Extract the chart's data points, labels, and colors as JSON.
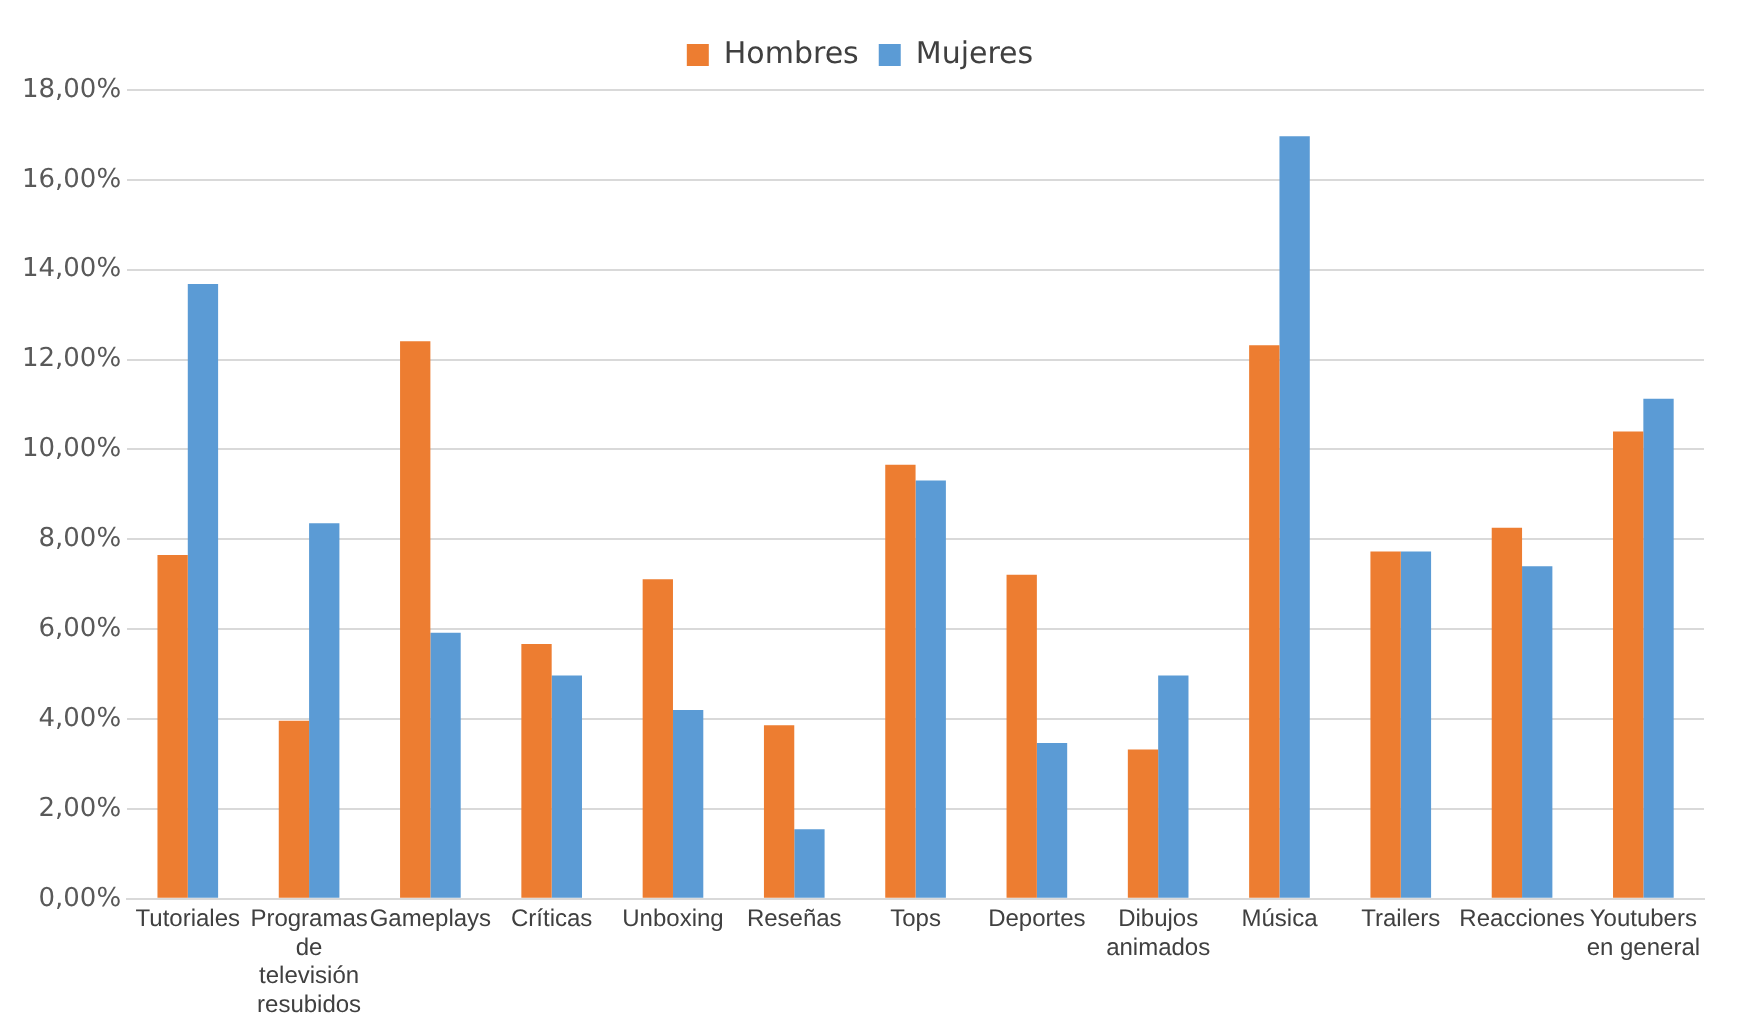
{
  "chart_data": {
    "type": "bar",
    "categories": [
      "Tutoriales",
      "Programas de televisión resubidos",
      "Gameplays",
      "Críticas",
      "Unboxing",
      "Reseñas",
      "Tops",
      "Deportes",
      "Dibujos animados",
      "Música",
      "Trailers",
      "Reacciones",
      "Youtubers en general"
    ],
    "series": [
      {
        "name": "Hombres",
        "color": "#ed7d31",
        "values": [
          7.65,
          3.96,
          12.41,
          5.67,
          7.11,
          3.86,
          9.66,
          7.21,
          3.32,
          12.32,
          7.73,
          8.26,
          10.4
        ]
      },
      {
        "name": "Mujeres",
        "color": "#5b9bd5",
        "values": [
          13.68,
          8.36,
          5.92,
          4.97,
          4.2,
          1.55,
          9.31,
          3.47,
          4.97,
          16.97,
          7.73,
          7.4,
          11.13
        ]
      }
    ],
    "ylim": [
      0,
      18
    ],
    "yticks": [
      {
        "value": 0,
        "label": "0,00%"
      },
      {
        "value": 2,
        "label": "2,00%"
      },
      {
        "value": 4,
        "label": "4,00%"
      },
      {
        "value": 6,
        "label": "6,00%"
      },
      {
        "value": 8,
        "label": "8,00%"
      },
      {
        "value": 10,
        "label": "10,00%"
      },
      {
        "value": 12,
        "label": "12,00%"
      },
      {
        "value": 14,
        "label": "14,00%"
      },
      {
        "value": 16,
        "label": "16,00%"
      },
      {
        "value": 18,
        "label": "18,00%"
      }
    ],
    "grid": "y",
    "legend": "top"
  }
}
